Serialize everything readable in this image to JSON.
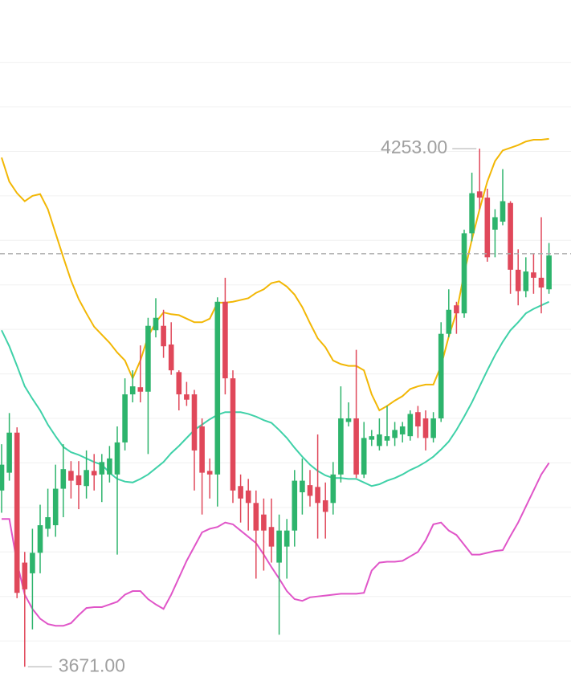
{
  "chart_data": {
    "type": "candlestick",
    "categories": [
      null,
      null,
      null,
      null,
      null,
      null,
      null,
      null,
      null,
      null,
      null,
      null,
      null,
      null,
      null,
      null,
      null,
      null,
      null,
      null,
      null,
      null,
      null,
      null,
      null,
      null,
      null,
      null,
      null,
      null,
      null,
      null,
      null,
      null,
      null,
      null,
      null,
      null,
      null,
      null,
      null,
      null,
      null,
      null,
      null,
      null,
      null,
      null,
      null,
      null,
      null,
      null,
      null,
      null,
      null,
      null,
      null,
      null,
      null,
      null,
      null,
      null,
      null,
      null,
      null,
      null,
      null,
      null,
      null,
      null,
      null,
      null
    ],
    "open": [
      3869,
      3889,
      3934,
      3788,
      3776,
      3799,
      3826,
      3830,
      3871,
      3891,
      3886,
      3874,
      3891,
      3887,
      3887,
      3887,
      3923,
      3977,
      3985,
      3980,
      4049,
      4054,
      4033,
      4002,
      3977,
      3977,
      3941,
      3891,
      3887,
      4081,
      3995,
      3874,
      3869,
      3855,
      3842,
      3828,
      3788,
      3806,
      3824,
      3867,
      3875,
      3873,
      3858,
      3855,
      3887,
      3946,
      3950,
      3887,
      3926,
      3919,
      3925,
      3928,
      3932,
      3930,
      3957,
      3950,
      3928,
      3950,
      4045,
      4077,
      4068,
      4158,
      4205,
      4198,
      4162,
      4171,
      4192,
      4117,
      4093,
      4114,
      4108,
      4095
    ],
    "high": [
      3921,
      3956,
      3940,
      3800,
      3826,
      3853,
      3871,
      3898,
      3921,
      3902,
      3902,
      3914,
      3910,
      3910,
      3919,
      3941,
      3995,
      4004,
      4032,
      4063,
      4085,
      4072,
      4058,
      4004,
      3991,
      3982,
      3950,
      3905,
      4086,
      4108,
      4004,
      3887,
      3882,
      3869,
      3860,
      3860,
      3842,
      3837,
      3892,
      3905,
      3892,
      3932,
      3878,
      3901,
      3986,
      3968,
      4027,
      3946,
      3937,
      3950,
      3964,
      3946,
      3946,
      3959,
      3964,
      3959,
      3957,
      4058,
      4095,
      4081,
      4162,
      4226,
      4253,
      4208,
      4185,
      4230,
      4194,
      4140,
      4131,
      4135,
      4176,
      4147
    ],
    "low": [
      3844,
      3880,
      3748,
      3671,
      3713,
      3776,
      3817,
      3817,
      3839,
      3860,
      3848,
      3860,
      3869,
      3856,
      3878,
      3797,
      3914,
      3968,
      3968,
      3910,
      4041,
      4018,
      3999,
      3959,
      3964,
      3869,
      3842,
      3860,
      3851,
      3977,
      3855,
      3833,
      3824,
      3770,
      3779,
      3788,
      3707,
      3770,
      3806,
      3842,
      3851,
      3815,
      3815,
      3842,
      3878,
      3941,
      3883,
      3883,
      3919,
      3914,
      3919,
      3919,
      3923,
      3925,
      3928,
      3914,
      3923,
      3946,
      4041,
      4045,
      4063,
      4149,
      4185,
      4126,
      4131,
      4167,
      4090,
      4077,
      4086,
      4090,
      4068,
      4090
    ],
    "close": [
      3898,
      3934,
      3754,
      3758,
      3799,
      3830,
      3839,
      3871,
      3893,
      3880,
      3875,
      3892,
      3886,
      3901,
      3905,
      3923,
      3977,
      3986,
      3980,
      4054,
      4063,
      4031,
      4004,
      3977,
      3971,
      3914,
      3889,
      3887,
      4081,
      3995,
      3869,
      3860,
      3855,
      3824,
      3824,
      3806,
      3824,
      3824,
      3880,
      3880,
      3863,
      3855,
      3845,
      3887,
      3950,
      3950,
      3887,
      3928,
      3930,
      3932,
      3930,
      3937,
      3941,
      3955,
      3941,
      3928,
      3950,
      4045,
      4072,
      4068,
      4158,
      4203,
      4198,
      4131,
      4176,
      4194,
      4117,
      4093,
      4115,
      4108,
      4097,
      4133
    ],
    "up_color": "#2db46c",
    "down_color": "#e0485a",
    "bands": [
      {
        "color": "#f2b705",
        "values": [
          4243,
          4216,
          4203,
          4194,
          4200,
          4202,
          4185,
          4158,
          4131,
          4105,
          4084,
          4068,
          4053,
          4044,
          4035,
          4024,
          4015,
          3995,
          4015,
          4042,
          4058,
          4069,
          4067,
          4066,
          4062,
          4058,
          4058,
          4062,
          4080,
          4080,
          4081,
          4083,
          4085,
          4091,
          4095,
          4102,
          4104,
          4098,
          4089,
          4075,
          4057,
          4040,
          4030,
          4015,
          4011,
          4009,
          4009,
          4004,
          3977,
          3959,
          3964,
          3970,
          3975,
          3983,
          3986,
          3988,
          3988,
          4009,
          4042,
          4069,
          4113,
          4151,
          4185,
          4216,
          4239,
          4251,
          4254,
          4257,
          4261,
          4263,
          4263,
          4264
        ]
      },
      {
        "color": "#3fd1a8",
        "values": [
          4049,
          4031,
          4009,
          3986,
          3972,
          3959,
          3943,
          3930,
          3918,
          3912,
          3909,
          3905,
          3901,
          3898,
          3889,
          3882,
          3879,
          3878,
          3882,
          3887,
          3894,
          3901,
          3911,
          3919,
          3928,
          3937,
          3943,
          3949,
          3954,
          3957,
          3957,
          3957,
          3955,
          3952,
          3948,
          3945,
          3937,
          3928,
          3917,
          3907,
          3898,
          3891,
          3886,
          3883,
          3883,
          3882,
          3882,
          3878,
          3874,
          3876,
          3880,
          3883,
          3887,
          3892,
          3896,
          3901,
          3907,
          3915,
          3924,
          3937,
          3952,
          3968,
          3986,
          4004,
          4021,
          4036,
          4049,
          4058,
          4068,
          4073,
          4077,
          4081
        ]
      },
      {
        "color": "#e055c8",
        "values": [
          3837,
          3837,
          3788,
          3752,
          3736,
          3725,
          3719,
          3717,
          3717,
          3720,
          3729,
          3737,
          3738,
          3738,
          3741,
          3744,
          3752,
          3756,
          3756,
          3747,
          3741,
          3736,
          3752,
          3771,
          3790,
          3806,
          3822,
          3826,
          3828,
          3833,
          3831,
          3824,
          3817,
          3810,
          3797,
          3783,
          3770,
          3756,
          3747,
          3745,
          3749,
          3750,
          3751,
          3752,
          3753,
          3753,
          3753,
          3754,
          3779,
          3788,
          3789,
          3789,
          3790,
          3795,
          3800,
          3813,
          3831,
          3833,
          3824,
          3819,
          3808,
          3797,
          3797,
          3799,
          3801,
          3802,
          3818,
          3833,
          3851,
          3869,
          3887,
          3900
        ]
      }
    ],
    "current_price": 4135,
    "current_price_color": "#aaaaaa",
    "annotations": [
      {
        "value": 4253,
        "label": "4253.00"
      },
      {
        "value": 3671,
        "label": "3671.00"
      }
    ],
    "ylim": [
      3655,
      4420
    ],
    "yticks": [
      3700,
      3750,
      3800,
      3850,
      3900,
      3950,
      4000,
      4050,
      4100,
      4150,
      4200,
      4250,
      4300,
      4350
    ],
    "grid": true
  }
}
